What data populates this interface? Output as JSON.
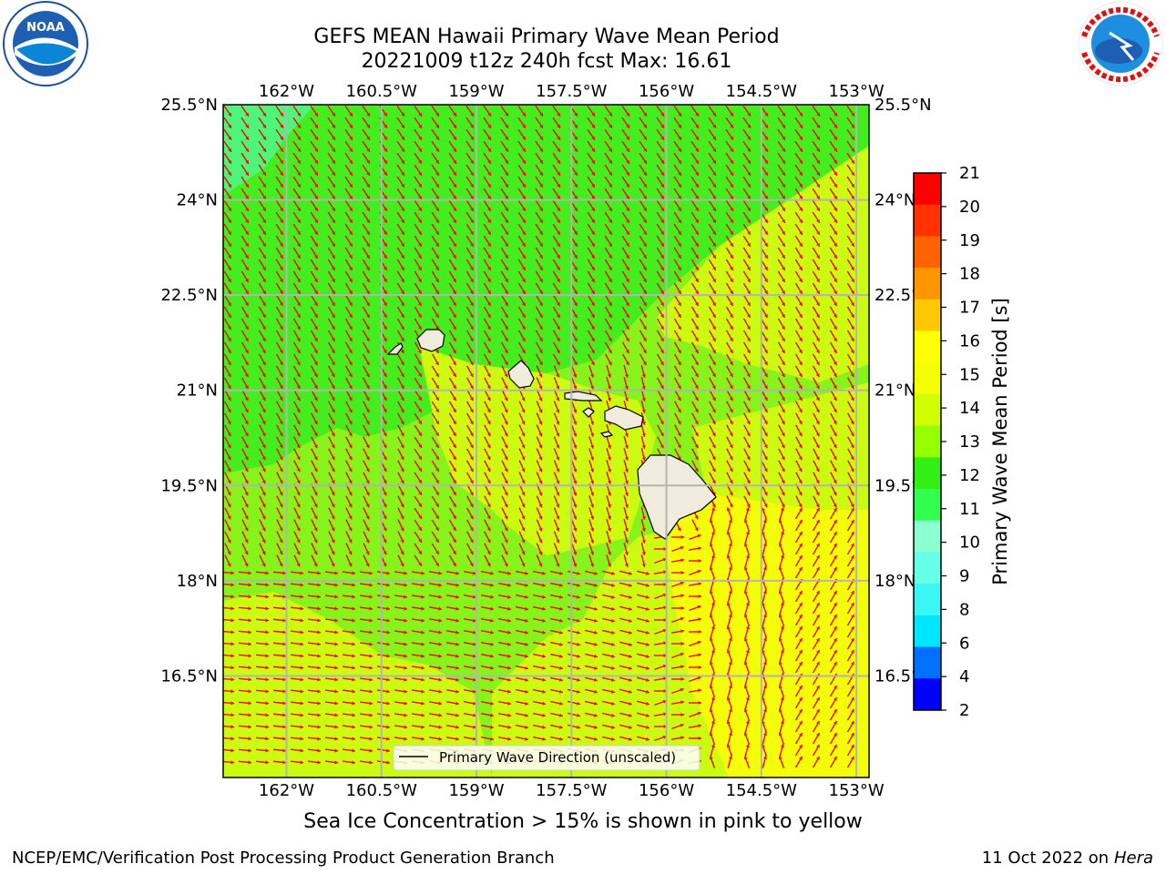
{
  "header": {
    "title_line1": "GEFS MEAN Hawaii Primary Wave Mean Period",
    "title_line2": "20221009 t12z 240h fcst   Max: 16.61"
  },
  "logos": {
    "left": {
      "name": "noaa-logo",
      "text": "NOAA",
      "ring_text": "NATIONAL OCEANIC AND ATMOSPHERIC ADMINISTRATION · U.S. DEPARTMENT OF COMMERCE"
    },
    "right": {
      "name": "nws-logo",
      "ring_text": "NATIONAL WEATHER SERVICE"
    }
  },
  "map": {
    "lon_ticks": [
      "162°W",
      "160.5°W",
      "159°W",
      "157.5°W",
      "156°W",
      "154.5°W",
      "153°W"
    ],
    "lat_ticks": [
      "25.5°N",
      "24°N",
      "22.5°N",
      "21°N",
      "19.5°N",
      "18°N",
      "16.5°N"
    ],
    "lon_range": [
      -163,
      -152.8
    ],
    "lat_range": [
      14.9,
      25.5
    ],
    "legend_label": "Primary Wave Direction (unscaled)",
    "arrow_color": "#ff0000",
    "grid_color": "#b4b4b4"
  },
  "colorbar": {
    "label": "Primary Wave Mean Period [s]",
    "ticks": [
      "2",
      "4",
      "6",
      "8",
      "9",
      "10",
      "11",
      "12",
      "13",
      "14",
      "15",
      "16",
      "17",
      "18",
      "19",
      "20",
      "21"
    ],
    "colors": [
      "#0000ff",
      "#0070ff",
      "#00e6ff",
      "#3cf5f5",
      "#66ffe8",
      "#8cffd2",
      "#32ff50",
      "#32f014",
      "#96ff00",
      "#d2ff00",
      "#f5ff00",
      "#ffff00",
      "#ffc800",
      "#ff9600",
      "#ff6400",
      "#ff3200",
      "#ff0000"
    ]
  },
  "footer": {
    "note": "Sea Ice Concentration > 15% is shown in pink to yellow",
    "credit": "NCEP/EMC/Verification Post Processing Product Generation Branch",
    "date_text": "11 Oct 2022 on ",
    "machine": "Hera"
  }
}
